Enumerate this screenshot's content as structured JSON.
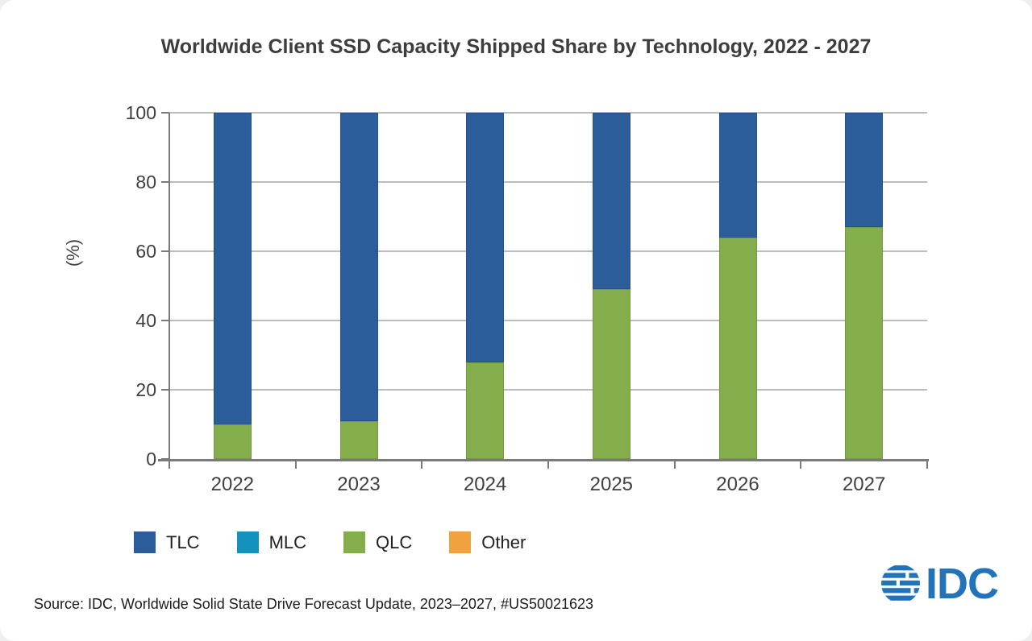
{
  "page": {
    "background": "#eef0ee",
    "card_background": "#ffffff"
  },
  "chart_data": {
    "type": "bar",
    "stacked": true,
    "title": "Worldwide Client SSD Capacity Shipped Share by Technology, 2022 - 2027",
    "categories": [
      "2022",
      "2023",
      "2024",
      "2025",
      "2026",
      "2027"
    ],
    "series": [
      {
        "name": "QLC",
        "color": "#84AD4C",
        "values": [
          10,
          11,
          28,
          49,
          64,
          67
        ]
      },
      {
        "name": "MLC",
        "color": "#1392BE",
        "values": [
          0,
          0,
          0,
          0,
          0,
          0
        ]
      },
      {
        "name": "Other",
        "color": "#EFA23D",
        "values": [
          0,
          0,
          0,
          0,
          0,
          0
        ]
      },
      {
        "name": "TLC",
        "color": "#2B5D9B",
        "values": [
          90,
          89,
          72,
          51,
          36,
          33
        ]
      }
    ],
    "legend_order": [
      "TLC",
      "MLC",
      "QLC",
      "Other"
    ],
    "ylabel": "(%)",
    "yticks": [
      0,
      20,
      40,
      60,
      80,
      100
    ],
    "ylim": [
      0,
      100
    ],
    "grid": true,
    "legend_position": "bottom-left",
    "axis_color": "#7a7a7a",
    "gridline_color": "#bcbcbc",
    "tick_label_color": "#3f3f3f"
  },
  "footer": {
    "source": "Source: IDC, Worldwide Solid State Drive Forecast Update, 2023–2027, #US50021623",
    "logo_text": "IDC",
    "logo_color": "#2273BA"
  }
}
